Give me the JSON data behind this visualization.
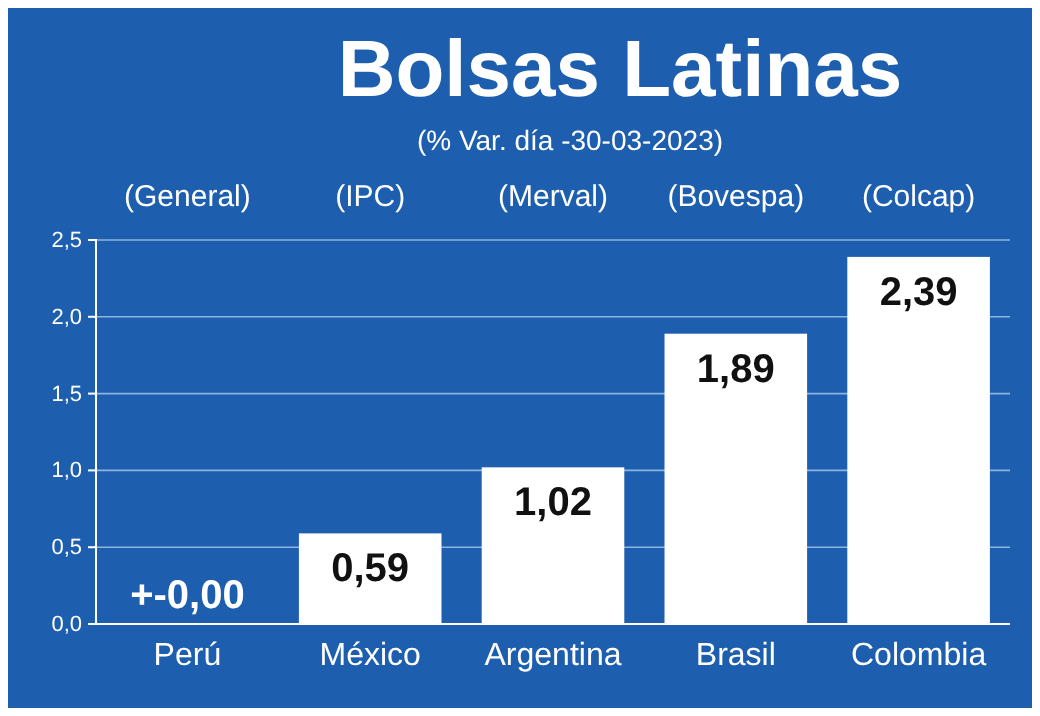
{
  "chart_data": {
    "type": "bar",
    "title": "Bolsas Latinas",
    "subtitle": "(% Var. día -30-03-2023)",
    "categories": [
      "Perú",
      "México",
      "Argentina",
      "Brasil",
      "Colombia"
    ],
    "values": [
      0,
      0.59,
      1.02,
      1.89,
      2.39
    ],
    "value_labels": [
      "+-0,00",
      "0,59",
      "1,02",
      "1,89",
      "2,39"
    ],
    "color": "#ffffff",
    "ylim": [
      0,
      2.5
    ],
    "yticks": [
      {
        "value": 0,
        "label": "0,0"
      },
      {
        "value": 0.5,
        "label": "0,5"
      },
      {
        "value": 1,
        "label": "1,0"
      },
      {
        "value": 1.5,
        "label": "1,5"
      },
      {
        "value": 2,
        "label": "2,0"
      },
      {
        "value": 2.5,
        "label": "2,5"
      }
    ],
    "grid": "y",
    "annotations": [
      "(General)",
      "(IPC)",
      "(Merval)",
      "(Bovespa)",
      "(Colcap)"
    ]
  }
}
